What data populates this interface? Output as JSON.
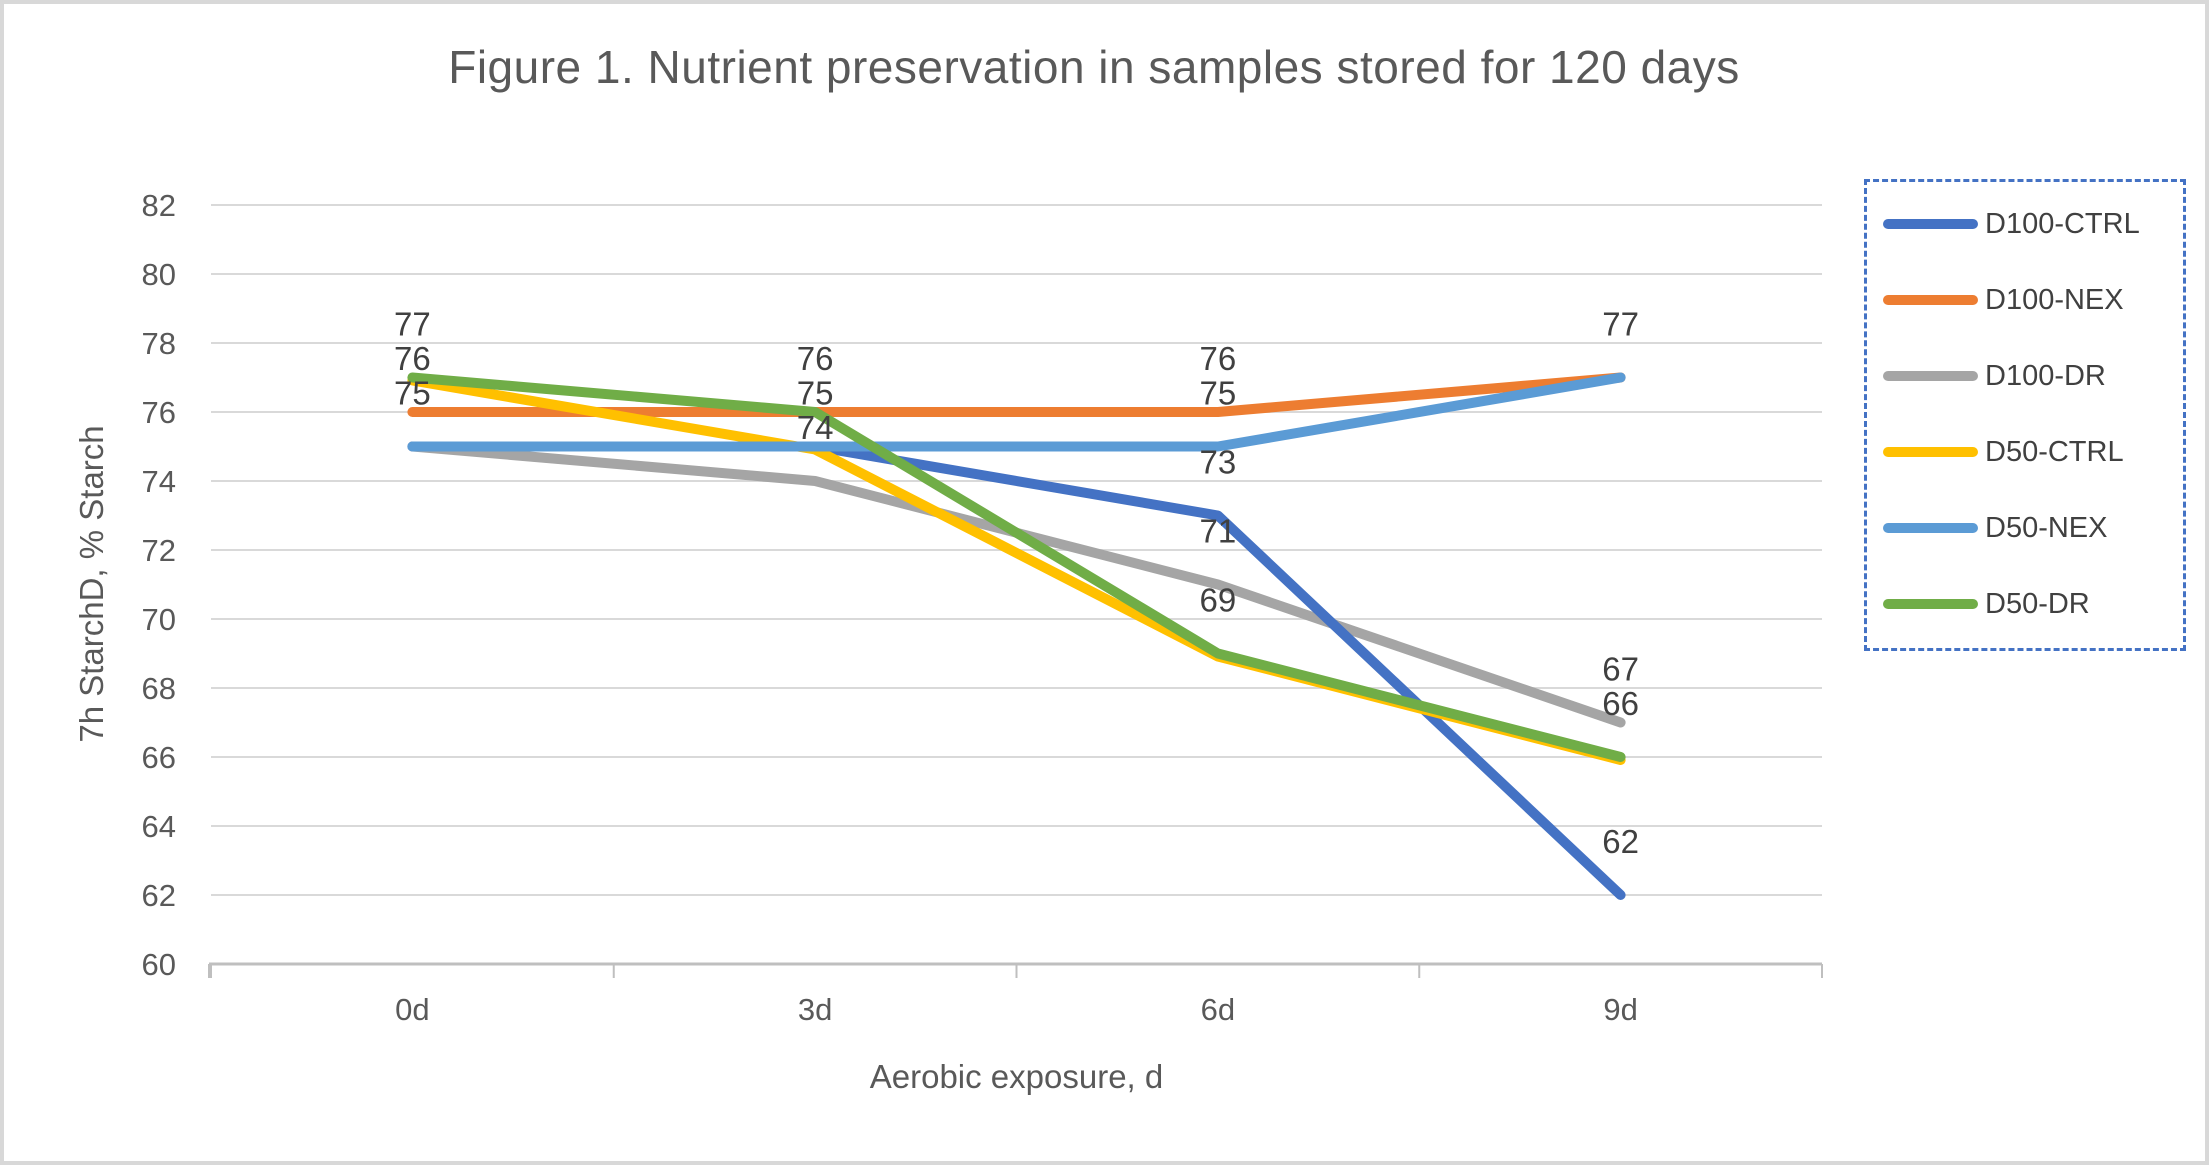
{
  "figure": {
    "title": "Figure 1. Nutrient preservation in samples stored for 120 days"
  },
  "chart_data": {
    "type": "line",
    "title": "Figure 1. Nutrient preservation in samples stored for 120 days",
    "categories": [
      "0d",
      "3d",
      "6d",
      "9d"
    ],
    "series": [
      {
        "name": "D100-CTRL",
        "color": "#4472C4",
        "values": [
          75,
          75,
          73,
          62
        ]
      },
      {
        "name": "D100-NEX",
        "color": "#ED7D31",
        "values": [
          76,
          76,
          76,
          77
        ]
      },
      {
        "name": "D100-DR",
        "color": "#A5A5A5",
        "values": [
          75,
          74,
          71,
          67
        ]
      },
      {
        "name": "D50-CTRL",
        "color": "#FFC000",
        "values": [
          77,
          75,
          69,
          66
        ]
      },
      {
        "name": "D50-NEX",
        "color": "#5B9BD5",
        "values": [
          75,
          75,
          75,
          77
        ]
      },
      {
        "name": "D50-DR",
        "color": "#70AD47",
        "values": [
          77,
          76,
          69,
          66
        ]
      }
    ],
    "visible_point_labels": [
      [
        77,
        76,
        75
      ],
      [
        76,
        75,
        74
      ],
      [
        76,
        75,
        73,
        71,
        69
      ],
      [
        77,
        67,
        66,
        62
      ]
    ],
    "xlabel": "Aerobic exposure, d",
    "ylabel": "7h StarchD, % Starch",
    "ylim": [
      60,
      82
    ],
    "ytick_step": 2,
    "grid": true,
    "legend_position": "right",
    "styles": {
      "gridline_color": "#D9D9D9",
      "axis_line_color": "#BFBFBF",
      "tick_label_color": "#595959",
      "data_label_color": "#404040",
      "title_color": "#595959",
      "legend_border_color": "#4472C4",
      "legend_text_color": "#404040"
    }
  }
}
